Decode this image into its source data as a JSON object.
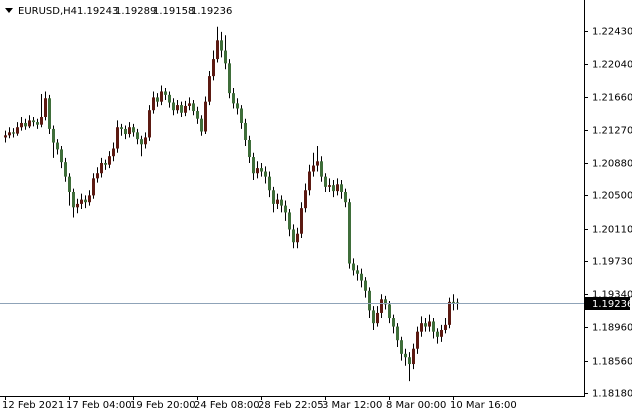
{
  "chart_data": {
    "type": "candlestick",
    "symbol": "EURUSD,H4",
    "bull_color": "#5c1a12",
    "bear_color": "#3f6e3a",
    "wick_color": "#000000",
    "price_line_color": "#8fa3b8",
    "ylim": [
      1.18145,
      1.2277
    ],
    "yticks": [
      {
        "value": 1.2243,
        "label": "1.22430"
      },
      {
        "value": 1.2204,
        "label": "1.22040"
      },
      {
        "value": 1.2166,
        "label": "1.21660"
      },
      {
        "value": 1.2127,
        "label": "1.21270"
      },
      {
        "value": 1.2088,
        "label": "1.20880"
      },
      {
        "value": 1.205,
        "label": "1.20500"
      },
      {
        "value": 1.2011,
        "label": "1.20110"
      },
      {
        "value": 1.1973,
        "label": "1.19730"
      },
      {
        "value": 1.1934,
        "label": "1.19340"
      },
      {
        "value": 1.1896,
        "label": "1.18960"
      },
      {
        "value": 1.1856,
        "label": "1.18560"
      },
      {
        "value": 1.1818,
        "label": "1.18180"
      }
    ],
    "categories": [
      "12 Feb 2021",
      null,
      null,
      null,
      null,
      null,
      null,
      null,
      null,
      null,
      null,
      null,
      null,
      null,
      null,
      null,
      "17 Feb 04:00",
      null,
      null,
      null,
      null,
      null,
      null,
      null,
      null,
      null,
      null,
      null,
      null,
      null,
      null,
      null,
      "19 Feb 20:00",
      null,
      null,
      null,
      null,
      null,
      null,
      null,
      null,
      null,
      null,
      null,
      null,
      null,
      null,
      null,
      "24 Feb 08:00",
      null,
      null,
      null,
      null,
      null,
      null,
      null,
      null,
      null,
      null,
      null,
      null,
      null,
      null,
      null,
      "28 Feb 22:05",
      null,
      null,
      null,
      null,
      null,
      null,
      null,
      null,
      null,
      null,
      null,
      null,
      null,
      null,
      null,
      "3 Mar 12:00",
      null,
      null,
      null,
      null,
      null,
      null,
      null,
      null,
      null,
      null,
      null,
      null,
      null,
      null,
      null,
      "8 Mar 00:00",
      null,
      null,
      null,
      null,
      null,
      null,
      null,
      null,
      null,
      null,
      null,
      null,
      null,
      null,
      null,
      "10 Mar 16:00",
      null
    ],
    "open": [
      1.2118,
      1.21205,
      1.2124,
      1.21225,
      1.213,
      1.2135,
      1.2131,
      1.2138,
      1.2136,
      1.2133,
      1.2142,
      1.2164,
      1.2128,
      1.2112,
      1.2104,
      1.2089,
      1.2072,
      1.2054,
      1.2036,
      1.204,
      1.2045,
      1.2042,
      1.205,
      1.207,
      1.2076,
      1.2088,
      1.2086,
      1.2096,
      1.2105,
      1.213,
      1.2128,
      1.2122,
      1.213,
      1.2124,
      1.2116,
      1.211,
      1.2118,
      1.215,
      1.2165,
      1.216,
      1.2172,
      1.2168,
      1.2159,
      1.215,
      1.2156,
      1.2147,
      1.2155,
      1.2158,
      1.2149,
      1.214,
      1.2125,
      1.216,
      1.219,
      1.221,
      1.2232,
      1.222,
      1.2205,
      1.217,
      1.2158,
      1.2152,
      1.2135,
      1.2115,
      1.2095,
      1.2076,
      1.2082,
      1.2078,
      1.2072,
      1.2056,
      1.204,
      1.2045,
      1.2038,
      1.203,
      1.201,
      1.1995,
      1.2005,
      1.2035,
      1.2056,
      1.2078,
      1.2085,
      1.209,
      1.2072,
      1.206,
      1.2062,
      1.2055,
      1.2063,
      1.2054,
      1.2042,
      1.197,
      1.1962,
      1.1958,
      1.195,
      1.1938,
      1.1915,
      1.19,
      1.1912,
      1.1928,
      1.1922,
      1.1906,
      1.1896,
      1.188,
      1.1864,
      1.186,
      1.1852,
      1.187,
      1.189,
      1.19,
      1.1896,
      1.1902,
      1.189,
      1.1884,
      1.1892,
      1.1898,
      1.1925,
      1.19243
    ],
    "high": [
      1.2126,
      1.213,
      1.2129,
      1.2136,
      1.2142,
      1.214,
      1.2144,
      1.2142,
      1.214,
      1.2169,
      1.2172,
      1.2168,
      1.2132,
      1.2116,
      1.2108,
      1.2094,
      1.2076,
      1.2058,
      1.2046,
      1.2052,
      1.205,
      1.2056,
      1.2076,
      1.2083,
      1.2094,
      1.2092,
      1.2102,
      1.2112,
      1.2138,
      1.2134,
      1.2132,
      1.2136,
      1.2134,
      1.2128,
      1.212,
      1.2124,
      1.2156,
      1.2172,
      1.217,
      1.2179,
      1.2176,
      1.2172,
      1.2164,
      1.2162,
      1.216,
      1.2161,
      1.2165,
      1.2162,
      1.2154,
      1.2144,
      1.2166,
      1.2196,
      1.222,
      1.2248,
      1.2242,
      1.2238,
      1.221,
      1.2176,
      1.2164,
      1.2156,
      1.214,
      1.212,
      1.21,
      1.209,
      1.2088,
      1.2084,
      1.2078,
      1.206,
      1.2052,
      1.205,
      1.2044,
      1.2034,
      1.2016,
      1.2012,
      1.2042,
      1.2064,
      1.2086,
      1.21,
      1.2108,
      1.2096,
      1.2076,
      1.207,
      1.2068,
      1.207,
      1.2068,
      1.2058,
      1.2046,
      1.1976,
      1.1968,
      1.1964,
      1.1954,
      1.1942,
      1.192,
      1.192,
      1.1934,
      1.1932,
      1.1926,
      1.191,
      1.19,
      1.1884,
      1.187,
      1.1866,
      1.1876,
      1.1896,
      1.1908,
      1.1906,
      1.191,
      1.1906,
      1.1894,
      1.1898,
      1.1906,
      1.193,
      1.1934,
      1.19289
    ],
    "low": [
      1.2112,
      1.2117,
      1.2118,
      1.212,
      1.2126,
      1.2127,
      1.2129,
      1.2131,
      1.2128,
      1.213,
      1.2138,
      1.2122,
      1.2094,
      1.2098,
      1.2082,
      1.2066,
      1.2038,
      1.2024,
      1.2029,
      1.2034,
      1.2035,
      1.2038,
      1.2046,
      1.2065,
      1.2071,
      1.208,
      1.2082,
      1.209,
      1.21,
      1.212,
      1.2116,
      1.2118,
      1.2119,
      1.211,
      1.2096,
      1.2105,
      1.2114,
      1.2146,
      1.2154,
      1.2156,
      1.2162,
      1.2153,
      1.2144,
      1.2146,
      1.2142,
      1.2143,
      1.215,
      1.2144,
      1.2134,
      1.212,
      1.2122,
      1.2156,
      1.2185,
      1.2206,
      1.2212,
      1.2198,
      1.2164,
      1.2152,
      1.2145,
      1.2128,
      1.2108,
      1.2088,
      1.2068,
      1.207,
      1.2072,
      1.2064,
      1.2048,
      1.203,
      1.2034,
      1.203,
      1.202,
      1.2002,
      1.1988,
      1.1988,
      1.2,
      1.203,
      1.205,
      1.2072,
      1.2078,
      1.2066,
      1.2054,
      1.2054,
      1.2048,
      1.205,
      1.2046,
      1.2036,
      1.1964,
      1.1956,
      1.195,
      1.1942,
      1.193,
      1.1906,
      1.1892,
      1.1896,
      1.1906,
      1.1916,
      1.19,
      1.1888,
      1.1872,
      1.1856,
      1.185,
      1.1832,
      1.1846,
      1.1864,
      1.1884,
      1.189,
      1.189,
      1.1882,
      1.1876,
      1.1878,
      1.1888,
      1.1894,
      1.1915,
      1.19158
    ],
    "close": [
      1.21205,
      1.2124,
      1.21225,
      1.213,
      1.2135,
      1.2131,
      1.2138,
      1.2136,
      1.2133,
      1.2142,
      1.2164,
      1.2128,
      1.2112,
      1.2104,
      1.2089,
      1.2072,
      1.2054,
      1.2036,
      1.204,
      1.2045,
      1.2042,
      1.205,
      1.207,
      1.2076,
      1.2088,
      1.2086,
      1.2096,
      1.2105,
      1.213,
      1.2128,
      1.2122,
      1.213,
      1.2124,
      1.2116,
      1.211,
      1.2118,
      1.215,
      1.2165,
      1.216,
      1.2172,
      1.2168,
      1.2159,
      1.215,
      1.2156,
      1.2147,
      1.2155,
      1.2158,
      1.2149,
      1.214,
      1.2125,
      1.216,
      1.219,
      1.221,
      1.2232,
      1.222,
      1.2205,
      1.217,
      1.2158,
      1.2152,
      1.2135,
      1.2115,
      1.2095,
      1.2076,
      1.2082,
      1.2078,
      1.2072,
      1.2056,
      1.204,
      1.2045,
      1.2038,
      1.203,
      1.201,
      1.1995,
      1.2005,
      1.2035,
      1.2056,
      1.2078,
      1.2085,
      1.209,
      1.2072,
      1.206,
      1.2062,
      1.2055,
      1.2063,
      1.2054,
      1.2042,
      1.197,
      1.1962,
      1.1958,
      1.195,
      1.1938,
      1.1915,
      1.19,
      1.1912,
      1.1928,
      1.1922,
      1.1906,
      1.1896,
      1.188,
      1.1864,
      1.186,
      1.1852,
      1.187,
      1.189,
      1.19,
      1.1896,
      1.1902,
      1.189,
      1.1884,
      1.1892,
      1.1898,
      1.1925,
      1.19243,
      1.19236
    ]
  }
}
